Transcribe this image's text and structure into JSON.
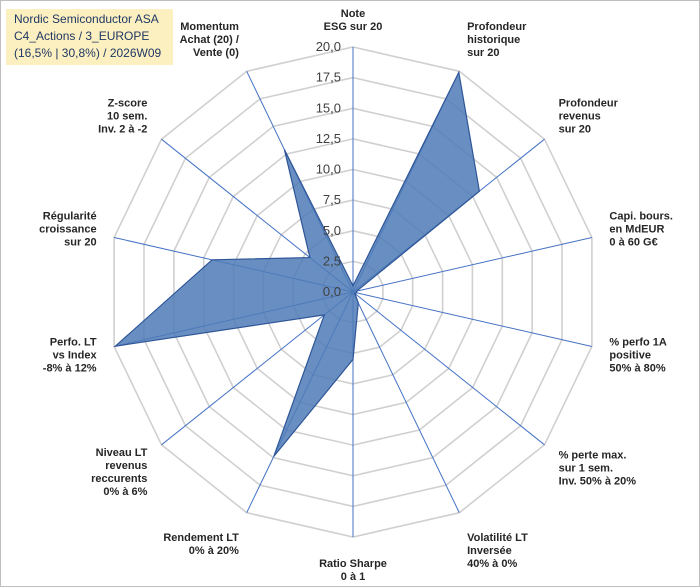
{
  "title_lines": [
    "Nordic Semiconductor ASA",
    "C4_Actions / 3_EUROPE",
    "(16,5% | 30,8%) / 2026W09"
  ],
  "colors": {
    "series_fill": "#4f7bb7",
    "series_line": "#2e5597",
    "grid": "#d0d0d0",
    "axis": "#4472c4",
    "title_bg": "#fdf0c0"
  },
  "chart_data": {
    "type": "radar",
    "rmax": 20,
    "ticks": [
      "0,0",
      "2,5",
      "5,0",
      "7,5",
      "10,0",
      "12,5",
      "15,0",
      "17,5",
      "20,0"
    ],
    "axes": [
      {
        "lines": [
          "Note",
          "ESG sur 20"
        ]
      },
      {
        "lines": [
          "Profondeur",
          "historique",
          "sur 20"
        ]
      },
      {
        "lines": [
          "Profondeur",
          "revenus",
          "sur 20"
        ]
      },
      {
        "lines": [
          "Capi. bours.",
          "en MdEUR",
          "0 à 60 G€"
        ]
      },
      {
        "lines": [
          "% perfo 1A",
          "positive",
          "50% à 80%"
        ]
      },
      {
        "lines": [
          "% perte max.",
          "sur 1 sem.",
          "Inv. 50% à 20%"
        ]
      },
      {
        "lines": [
          "Volatilité LT",
          "Inversée",
          "40% à 0%"
        ]
      },
      {
        "lines": [
          "Ratio Sharpe",
          "0 à 1"
        ]
      },
      {
        "lines": [
          "Rendement LT",
          "0% à 20%"
        ]
      },
      {
        "lines": [
          "Niveau LT",
          "revenus",
          "reccurents",
          "0% à 6%"
        ]
      },
      {
        "lines": [
          "Perfo. LT",
          "vs Index",
          "-8% à 12%"
        ]
      },
      {
        "lines": [
          "Régularité",
          "croissance",
          "sur 20"
        ]
      },
      {
        "lines": [
          "Z-score",
          "10 sem.",
          "Inv. 2 à -2"
        ]
      },
      {
        "lines": [
          "Momentum",
          "Achat (20) /",
          "Vente (0)"
        ]
      }
    ],
    "values": [
      0.5,
      19.9,
      13.2,
      0.3,
      0.3,
      0.2,
      1.0,
      5.5,
      14.9,
      3.0,
      19.9,
      11.8,
      4.5,
      12.9
    ],
    "legend": "none"
  }
}
